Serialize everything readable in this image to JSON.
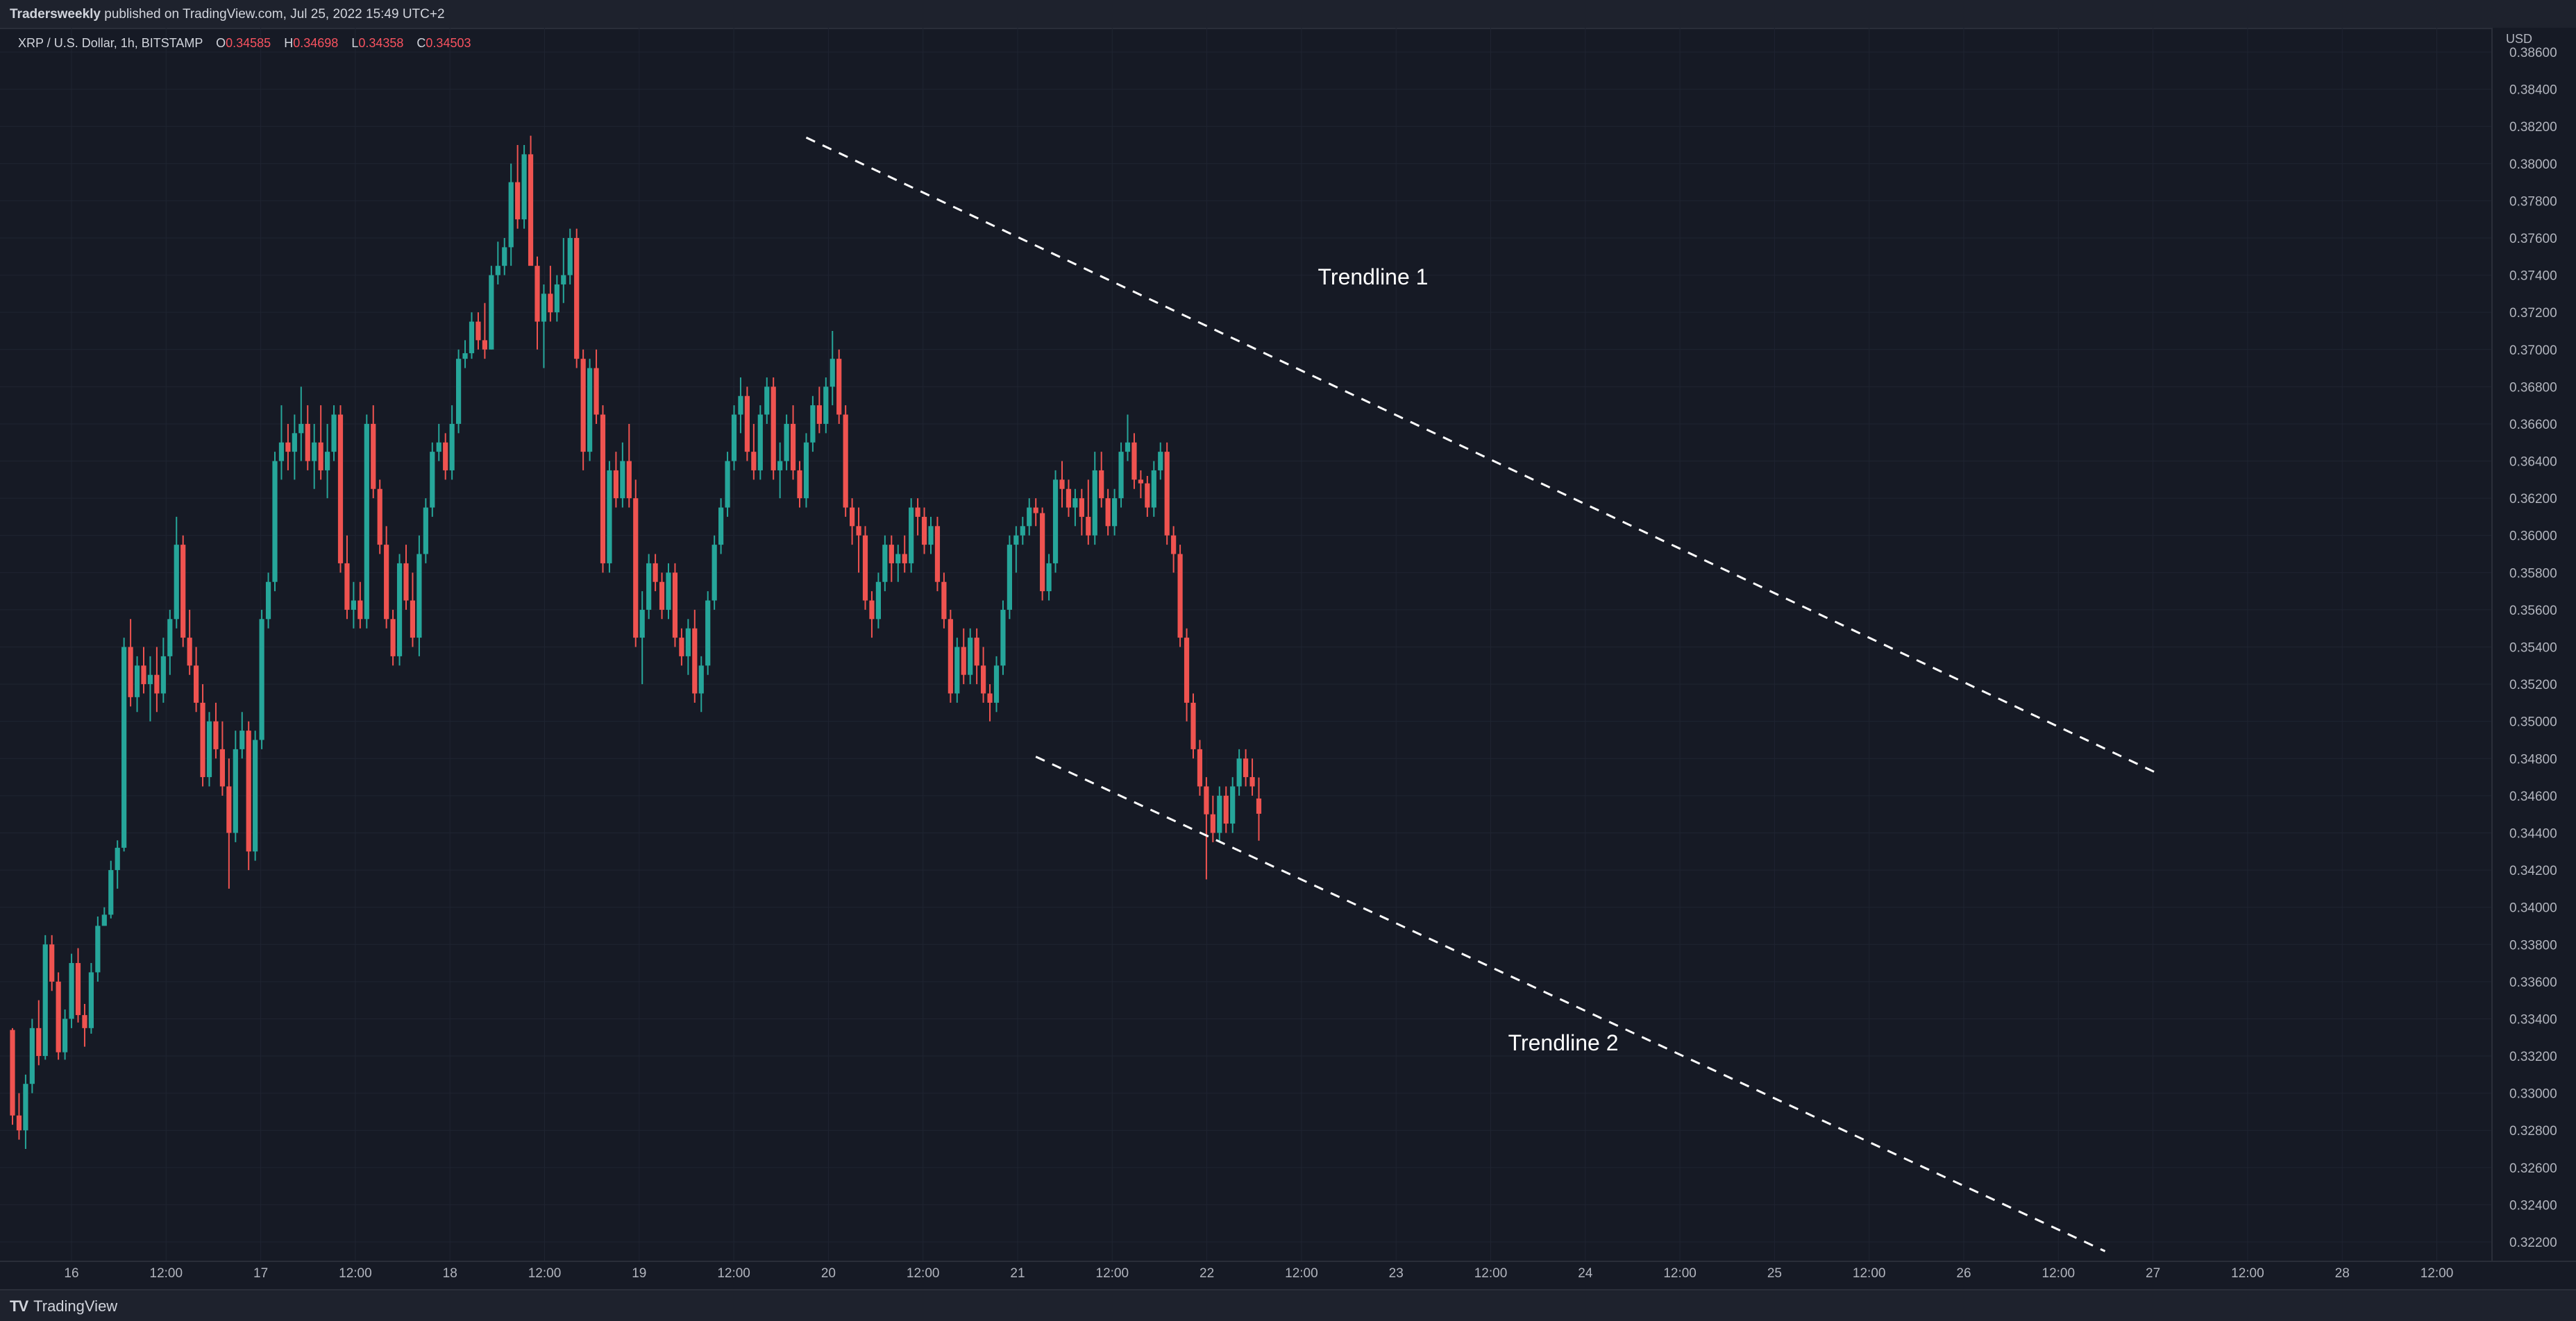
{
  "header": {
    "publisher": "Tradersweekly",
    "publish_text": " published on TradingView.com, Jul 25, 2022 15:49 UTC+2"
  },
  "legend": {
    "symbol": "XRP / U.S. Dollar, 1h, BITSTAMP",
    "open_label": "O",
    "open": "0.34585",
    "high_label": "H",
    "high": "0.34698",
    "low_label": "L",
    "low": "0.34358",
    "close_label": "C",
    "close": "0.34503"
  },
  "footer": {
    "brand": "TradingView",
    "logo": "TV"
  },
  "colors": {
    "background": "#161a25",
    "up": "#26a69a",
    "down": "#ef5350",
    "grid": "#1f2431",
    "text": "#b2b5be"
  },
  "chart_data": {
    "type": "candlestick",
    "currency_label": "USD",
    "ylim": [
      0.3212,
      0.3872
    ],
    "yticks": [
      "0.38600",
      "0.38400",
      "0.38200",
      "0.38000",
      "0.37800",
      "0.37600",
      "0.37400",
      "0.37200",
      "0.37000",
      "0.36800",
      "0.36600",
      "0.36400",
      "0.36200",
      "0.36000",
      "0.35800",
      "0.35600",
      "0.35400",
      "0.35200",
      "0.35000",
      "0.34800",
      "0.34600",
      "0.34400",
      "0.34200",
      "0.34000",
      "0.33800",
      "0.33600",
      "0.33400",
      "0.33200",
      "0.33000",
      "0.32800",
      "0.32600",
      "0.32400",
      "0.32200"
    ],
    "xticks": [
      "16",
      "12:00",
      "17",
      "12:00",
      "18",
      "12:00",
      "19",
      "12:00",
      "20",
      "12:00",
      "21",
      "12:00",
      "22",
      "12:00",
      "23",
      "12:00",
      "24",
      "12:00",
      "25",
      "12:00",
      "26",
      "12:00",
      "27",
      "12:00",
      "28",
      "12:00"
    ],
    "candles": [
      [
        0.3334,
        0.3335,
        0.3283,
        0.3288
      ],
      [
        0.3288,
        0.33,
        0.3275,
        0.328
      ],
      [
        0.328,
        0.331,
        0.327,
        0.3305
      ],
      [
        0.3305,
        0.334,
        0.33,
        0.3335
      ],
      [
        0.3335,
        0.335,
        0.3315,
        0.332
      ],
      [
        0.332,
        0.3385,
        0.3318,
        0.338
      ],
      [
        0.338,
        0.3385,
        0.3355,
        0.336
      ],
      [
        0.336,
        0.3365,
        0.3318,
        0.3322
      ],
      [
        0.3322,
        0.3345,
        0.3318,
        0.334
      ],
      [
        0.334,
        0.3375,
        0.3335,
        0.337
      ],
      [
        0.337,
        0.3378,
        0.3338,
        0.3342
      ],
      [
        0.3342,
        0.3348,
        0.3325,
        0.3335
      ],
      [
        0.3335,
        0.337,
        0.3332,
        0.3365
      ],
      [
        0.3365,
        0.3395,
        0.336,
        0.339
      ],
      [
        0.339,
        0.34,
        0.339,
        0.3396
      ],
      [
        0.3396,
        0.3425,
        0.3394,
        0.342
      ],
      [
        0.342,
        0.3436,
        0.341,
        0.3432
      ],
      [
        0.3432,
        0.3545,
        0.343,
        0.354
      ],
      [
        0.354,
        0.3555,
        0.3508,
        0.3513
      ],
      [
        0.3513,
        0.3535,
        0.3505,
        0.353
      ],
      [
        0.353,
        0.354,
        0.3515,
        0.352
      ],
      [
        0.352,
        0.3535,
        0.35,
        0.3525
      ],
      [
        0.3525,
        0.354,
        0.3505,
        0.3515
      ],
      [
        0.3515,
        0.3545,
        0.351,
        0.3535
      ],
      [
        0.3535,
        0.356,
        0.3525,
        0.3555
      ],
      [
        0.3555,
        0.361,
        0.355,
        0.3595
      ],
      [
        0.3595,
        0.36,
        0.354,
        0.3545
      ],
      [
        0.3545,
        0.356,
        0.3525,
        0.353
      ],
      [
        0.353,
        0.354,
        0.3505,
        0.351
      ],
      [
        0.351,
        0.352,
        0.3465,
        0.347
      ],
      [
        0.347,
        0.3505,
        0.3465,
        0.35
      ],
      [
        0.35,
        0.351,
        0.348,
        0.3485
      ],
      [
        0.3485,
        0.35,
        0.346,
        0.3465
      ],
      [
        0.3465,
        0.348,
        0.341,
        0.344
      ],
      [
        0.344,
        0.3495,
        0.3435,
        0.3485
      ],
      [
        0.3485,
        0.3505,
        0.348,
        0.3495
      ],
      [
        0.3495,
        0.35,
        0.342,
        0.343
      ],
      [
        0.343,
        0.3495,
        0.3425,
        0.349
      ],
      [
        0.349,
        0.356,
        0.3485,
        0.3555
      ],
      [
        0.3555,
        0.358,
        0.355,
        0.3575
      ],
      [
        0.3575,
        0.3645,
        0.357,
        0.364
      ],
      [
        0.364,
        0.367,
        0.363,
        0.365
      ],
      [
        0.365,
        0.366,
        0.3635,
        0.3645
      ],
      [
        0.3645,
        0.3665,
        0.363,
        0.3655
      ],
      [
        0.3655,
        0.368,
        0.364,
        0.366
      ],
      [
        0.366,
        0.367,
        0.3635,
        0.364
      ],
      [
        0.364,
        0.366,
        0.3625,
        0.365
      ],
      [
        0.365,
        0.367,
        0.363,
        0.3635
      ],
      [
        0.3635,
        0.366,
        0.362,
        0.3645
      ],
      [
        0.3645,
        0.367,
        0.364,
        0.3665
      ],
      [
        0.3665,
        0.367,
        0.358,
        0.3585
      ],
      [
        0.3585,
        0.36,
        0.3555,
        0.356
      ],
      [
        0.356,
        0.3575,
        0.355,
        0.3565
      ],
      [
        0.3565,
        0.3575,
        0.355,
        0.3555
      ],
      [
        0.3555,
        0.3665,
        0.355,
        0.366
      ],
      [
        0.366,
        0.367,
        0.362,
        0.3625
      ],
      [
        0.3625,
        0.363,
        0.359,
        0.3595
      ],
      [
        0.3595,
        0.3605,
        0.355,
        0.3555
      ],
      [
        0.3555,
        0.356,
        0.353,
        0.3535
      ],
      [
        0.3535,
        0.359,
        0.353,
        0.3585
      ],
      [
        0.3585,
        0.3595,
        0.356,
        0.3565
      ],
      [
        0.3565,
        0.358,
        0.354,
        0.3545
      ],
      [
        0.3545,
        0.36,
        0.3535,
        0.359
      ],
      [
        0.359,
        0.362,
        0.3585,
        0.3615
      ],
      [
        0.3615,
        0.365,
        0.361,
        0.3645
      ],
      [
        0.3645,
        0.366,
        0.364,
        0.365
      ],
      [
        0.365,
        0.3655,
        0.363,
        0.3635
      ],
      [
        0.3635,
        0.367,
        0.363,
        0.366
      ],
      [
        0.366,
        0.37,
        0.3655,
        0.3695
      ],
      [
        0.3695,
        0.3705,
        0.369,
        0.3698
      ],
      [
        0.3698,
        0.372,
        0.3695,
        0.3715
      ],
      [
        0.3715,
        0.372,
        0.37,
        0.3705
      ],
      [
        0.3705,
        0.3725,
        0.3695,
        0.37
      ],
      [
        0.37,
        0.3745,
        0.37,
        0.374
      ],
      [
        0.374,
        0.3758,
        0.3735,
        0.3745
      ],
      [
        0.3745,
        0.376,
        0.374,
        0.3755
      ],
      [
        0.3755,
        0.38,
        0.3745,
        0.379
      ],
      [
        0.379,
        0.381,
        0.3765,
        0.377
      ],
      [
        0.377,
        0.381,
        0.3765,
        0.3805
      ],
      [
        0.3805,
        0.3815,
        0.375,
        0.3745
      ],
      [
        0.3745,
        0.375,
        0.37,
        0.3715
      ],
      [
        0.3715,
        0.3735,
        0.369,
        0.373
      ],
      [
        0.373,
        0.3745,
        0.3715,
        0.372
      ],
      [
        0.372,
        0.374,
        0.3715,
        0.3735
      ],
      [
        0.3735,
        0.376,
        0.3725,
        0.374
      ],
      [
        0.374,
        0.3765,
        0.3735,
        0.376
      ],
      [
        0.376,
        0.3765,
        0.369,
        0.3695
      ],
      [
        0.3695,
        0.37,
        0.3635,
        0.3645
      ],
      [
        0.3645,
        0.3695,
        0.364,
        0.369
      ],
      [
        0.369,
        0.37,
        0.366,
        0.3665
      ],
      [
        0.3665,
        0.367,
        0.358,
        0.3585
      ],
      [
        0.3585,
        0.364,
        0.358,
        0.3635
      ],
      [
        0.3635,
        0.3645,
        0.3615,
        0.362
      ],
      [
        0.362,
        0.365,
        0.3615,
        0.364
      ],
      [
        0.364,
        0.366,
        0.3615,
        0.362
      ],
      [
        0.362,
        0.363,
        0.354,
        0.3545
      ],
      [
        0.3545,
        0.357,
        0.352,
        0.356
      ],
      [
        0.356,
        0.359,
        0.3555,
        0.3585
      ],
      [
        0.3585,
        0.359,
        0.357,
        0.3575
      ],
      [
        0.3575,
        0.358,
        0.3555,
        0.356
      ],
      [
        0.356,
        0.3585,
        0.3555,
        0.358
      ],
      [
        0.358,
        0.3585,
        0.354,
        0.3545
      ],
      [
        0.3545,
        0.355,
        0.353,
        0.3535
      ],
      [
        0.3535,
        0.3555,
        0.3525,
        0.355
      ],
      [
        0.355,
        0.356,
        0.351,
        0.3515
      ],
      [
        0.3515,
        0.3535,
        0.3505,
        0.353
      ],
      [
        0.353,
        0.357,
        0.3525,
        0.3565
      ],
      [
        0.3565,
        0.36,
        0.356,
        0.3595
      ],
      [
        0.3595,
        0.362,
        0.359,
        0.3615
      ],
      [
        0.3615,
        0.3645,
        0.361,
        0.364
      ],
      [
        0.364,
        0.367,
        0.3635,
        0.3665
      ],
      [
        0.3665,
        0.3685,
        0.3655,
        0.3675
      ],
      [
        0.3675,
        0.368,
        0.364,
        0.3645
      ],
      [
        0.3645,
        0.366,
        0.363,
        0.3635
      ],
      [
        0.3635,
        0.367,
        0.363,
        0.3665
      ],
      [
        0.3665,
        0.3685,
        0.366,
        0.368
      ],
      [
        0.368,
        0.3685,
        0.363,
        0.3635
      ],
      [
        0.3635,
        0.365,
        0.362,
        0.364
      ],
      [
        0.364,
        0.3665,
        0.3635,
        0.366
      ],
      [
        0.366,
        0.367,
        0.363,
        0.3635
      ],
      [
        0.3635,
        0.364,
        0.3615,
        0.362
      ],
      [
        0.362,
        0.3655,
        0.3615,
        0.365
      ],
      [
        0.365,
        0.3675,
        0.3645,
        0.367
      ],
      [
        0.367,
        0.368,
        0.3655,
        0.366
      ],
      [
        0.366,
        0.3685,
        0.3655,
        0.368
      ],
      [
        0.368,
        0.371,
        0.367,
        0.3695
      ],
      [
        0.3695,
        0.37,
        0.366,
        0.3665
      ],
      [
        0.3665,
        0.367,
        0.361,
        0.3615
      ],
      [
        0.3615,
        0.362,
        0.3595,
        0.3605
      ],
      [
        0.3605,
        0.3615,
        0.358,
        0.36
      ],
      [
        0.36,
        0.3605,
        0.356,
        0.3565
      ],
      [
        0.3565,
        0.357,
        0.3545,
        0.3555
      ],
      [
        0.3555,
        0.358,
        0.355,
        0.3575
      ],
      [
        0.3575,
        0.36,
        0.357,
        0.3595
      ],
      [
        0.3595,
        0.36,
        0.3575,
        0.3585
      ],
      [
        0.3585,
        0.3595,
        0.3575,
        0.359
      ],
      [
        0.359,
        0.36,
        0.358,
        0.3585
      ],
      [
        0.3585,
        0.362,
        0.358,
        0.3615
      ],
      [
        0.3615,
        0.362,
        0.36,
        0.361
      ],
      [
        0.361,
        0.3615,
        0.359,
        0.3595
      ],
      [
        0.3595,
        0.361,
        0.359,
        0.3605
      ],
      [
        0.3605,
        0.361,
        0.357,
        0.3575
      ],
      [
        0.3575,
        0.358,
        0.355,
        0.3555
      ],
      [
        0.3555,
        0.356,
        0.351,
        0.3515
      ],
      [
        0.3515,
        0.3545,
        0.351,
        0.354
      ],
      [
        0.354,
        0.355,
        0.352,
        0.3525
      ],
      [
        0.3525,
        0.355,
        0.352,
        0.3545
      ],
      [
        0.3545,
        0.355,
        0.352,
        0.353
      ],
      [
        0.353,
        0.354,
        0.351,
        0.3515
      ],
      [
        0.3515,
        0.352,
        0.35,
        0.351
      ],
      [
        0.351,
        0.3535,
        0.3505,
        0.353
      ],
      [
        0.353,
        0.3565,
        0.3525,
        0.356
      ],
      [
        0.356,
        0.36,
        0.3555,
        0.3595
      ],
      [
        0.3595,
        0.3605,
        0.358,
        0.36
      ],
      [
        0.36,
        0.361,
        0.3595,
        0.3605
      ],
      [
        0.3605,
        0.362,
        0.36,
        0.3615
      ],
      [
        0.3615,
        0.362,
        0.3605,
        0.3612
      ],
      [
        0.3612,
        0.3615,
        0.3565,
        0.357
      ],
      [
        0.357,
        0.359,
        0.3565,
        0.3585
      ],
      [
        0.3585,
        0.3635,
        0.358,
        0.363
      ],
      [
        0.363,
        0.364,
        0.3615,
        0.3625
      ],
      [
        0.3625,
        0.363,
        0.361,
        0.3615
      ],
      [
        0.3615,
        0.3625,
        0.3605,
        0.362
      ],
      [
        0.362,
        0.3625,
        0.36,
        0.361
      ],
      [
        0.361,
        0.363,
        0.3595,
        0.36
      ],
      [
        0.36,
        0.3645,
        0.3595,
        0.3635
      ],
      [
        0.3635,
        0.3645,
        0.3615,
        0.362
      ],
      [
        0.362,
        0.3625,
        0.36,
        0.3605
      ],
      [
        0.3605,
        0.3625,
        0.36,
        0.362
      ],
      [
        0.362,
        0.365,
        0.3615,
        0.3645
      ],
      [
        0.3645,
        0.3665,
        0.364,
        0.365
      ],
      [
        0.365,
        0.3655,
        0.3625,
        0.363
      ],
      [
        0.363,
        0.3635,
        0.362,
        0.3628
      ],
      [
        0.3628,
        0.3632,
        0.361,
        0.3615
      ],
      [
        0.3615,
        0.364,
        0.361,
        0.3635
      ],
      [
        0.3635,
        0.365,
        0.363,
        0.3645
      ],
      [
        0.3645,
        0.365,
        0.3595,
        0.36
      ],
      [
        0.36,
        0.3605,
        0.358,
        0.359
      ],
      [
        0.359,
        0.3595,
        0.354,
        0.3545
      ],
      [
        0.3545,
        0.355,
        0.35,
        0.351
      ],
      [
        0.351,
        0.3515,
        0.348,
        0.3485
      ],
      [
        0.3485,
        0.349,
        0.346,
        0.3465
      ],
      [
        0.3465,
        0.347,
        0.3415,
        0.345
      ],
      [
        0.345,
        0.346,
        0.3435,
        0.344
      ],
      [
        0.344,
        0.3465,
        0.3435,
        0.346
      ],
      [
        0.346,
        0.3465,
        0.344,
        0.3445
      ],
      [
        0.3445,
        0.347,
        0.344,
        0.3465
      ],
      [
        0.3465,
        0.3485,
        0.346,
        0.348
      ],
      [
        0.348,
        0.3485,
        0.3465,
        0.347
      ],
      [
        0.347,
        0.348,
        0.346,
        0.3465
      ],
      [
        0.34585,
        0.34698,
        0.34358,
        0.34503
      ]
    ],
    "trendlines": [
      {
        "label": "Trendline 1",
        "from": [
          121,
          0.3814
        ],
        "to": [
          327,
          0.3472
        ],
        "label_at": [
          199,
          0.3735
        ]
      },
      {
        "label": "Trendline 2",
        "from": [
          156,
          0.3481
        ],
        "to": [
          319,
          0.3215
        ],
        "label_at": [
          228,
          0.3323
        ]
      }
    ]
  }
}
